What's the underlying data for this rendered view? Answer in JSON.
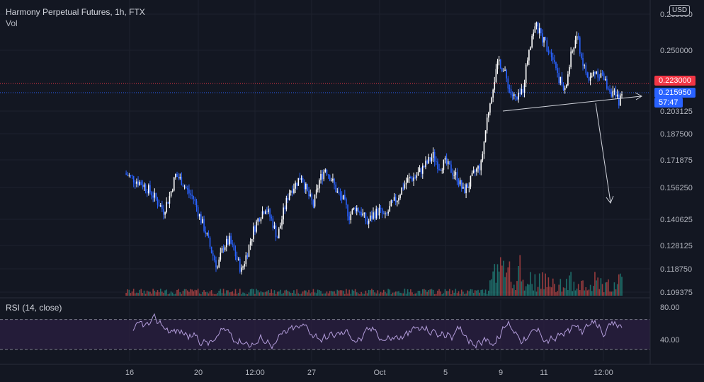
{
  "header": {
    "title": "Harmony Perpetual Futures, 1h, FTX",
    "sub": "Vol",
    "currency": "USD"
  },
  "rsi": {
    "title": "RSI (14, close)",
    "levels": [
      "80.00",
      "40.00"
    ],
    "upper": 70,
    "lower": 30
  },
  "price_tags": {
    "last_price": "0.223000",
    "current_price": "0.215950",
    "countdown": "57:47"
  },
  "colors": {
    "bg": "#131722",
    "up": "#ffffff",
    "down": "#2962ff",
    "rsi_line": "#b39ddb",
    "rsi_band": "#2b1f42",
    "tag_red": "#f23645",
    "tag_blue": "#2962ff",
    "vol_up": "#26a69a",
    "vol_down": "#ef5350"
  },
  "chart_data": {
    "type": "line",
    "title": "Harmony Perpetual Futures, 1h, FTX",
    "y_ticks": [
      "0.265650",
      "0.250000",
      "0.203125",
      "0.187500",
      "0.171875",
      "0.156250",
      "0.140625",
      "0.128125",
      "0.118750",
      "0.109375"
    ],
    "x_ticks": [
      "16",
      "20",
      "12:00",
      "27",
      "Oct",
      "5",
      "9",
      "11",
      "12:00"
    ],
    "ylim": [
      0.105,
      0.27
    ],
    "series": [
      {
        "values": [
          [
            0,
            0.174
          ],
          [
            3,
            0.171
          ],
          [
            6,
            0.168
          ],
          [
            9,
            0.163
          ],
          [
            11,
            0.158
          ],
          [
            13,
            0.153
          ],
          [
            15,
            0.161
          ],
          [
            17,
            0.173
          ],
          [
            19,
            0.17
          ],
          [
            21,
            0.164
          ],
          [
            23,
            0.16
          ],
          [
            25,
            0.15
          ],
          [
            27,
            0.141
          ],
          [
            29,
            0.13
          ],
          [
            31,
            0.121
          ],
          [
            33,
            0.133
          ],
          [
            35,
            0.136
          ],
          [
            37,
            0.128
          ],
          [
            39,
            0.119
          ],
          [
            41,
            0.13
          ],
          [
            43,
            0.142
          ],
          [
            45,
            0.15
          ],
          [
            47,
            0.155
          ],
          [
            49,
            0.148
          ],
          [
            51,
            0.138
          ],
          [
            53,
            0.152
          ],
          [
            55,
            0.164
          ],
          [
            57,
            0.168
          ],
          [
            59,
            0.173
          ],
          [
            61,
            0.163
          ],
          [
            63,
            0.156
          ],
          [
            65,
            0.17
          ],
          [
            67,
            0.177
          ],
          [
            69,
            0.171
          ],
          [
            71,
            0.163
          ],
          [
            73,
            0.159
          ],
          [
            75,
            0.15
          ],
          [
            77,
            0.155
          ],
          [
            79,
            0.152
          ],
          [
            81,
            0.146
          ],
          [
            83,
            0.151
          ],
          [
            85,
            0.153
          ],
          [
            87,
            0.149
          ],
          [
            89,
            0.156
          ],
          [
            91,
            0.16
          ],
          [
            93,
            0.167
          ],
          [
            95,
            0.171
          ],
          [
            97,
            0.172
          ],
          [
            99,
            0.176
          ],
          [
            101,
            0.18
          ],
          [
            103,
            0.184
          ],
          [
            105,
            0.178
          ],
          [
            107,
            0.18
          ],
          [
            109,
            0.176
          ],
          [
            111,
            0.172
          ],
          [
            113,
            0.164
          ],
          [
            115,
            0.168
          ],
          [
            117,
            0.175
          ],
          [
            119,
            0.179
          ],
          [
            121,
            0.205
          ],
          [
            123,
            0.224
          ],
          [
            125,
            0.238
          ],
          [
            127,
            0.23
          ],
          [
            129,
            0.219
          ],
          [
            131,
            0.215
          ],
          [
            133,
            0.222
          ],
          [
            135,
            0.245
          ],
          [
            137,
            0.258
          ],
          [
            139,
            0.252
          ],
          [
            141,
            0.246
          ],
          [
            143,
            0.241
          ],
          [
            145,
            0.228
          ],
          [
            147,
            0.22
          ],
          [
            149,
            0.24
          ],
          [
            151,
            0.252
          ],
          [
            153,
            0.236
          ],
          [
            155,
            0.226
          ],
          [
            157,
            0.232
          ],
          [
            159,
            0.23
          ],
          [
            161,
            0.224
          ],
          [
            163,
            0.219
          ],
          [
            165,
            0.215
          ],
          [
            166,
            0.2166
          ]
        ]
      }
    ]
  }
}
